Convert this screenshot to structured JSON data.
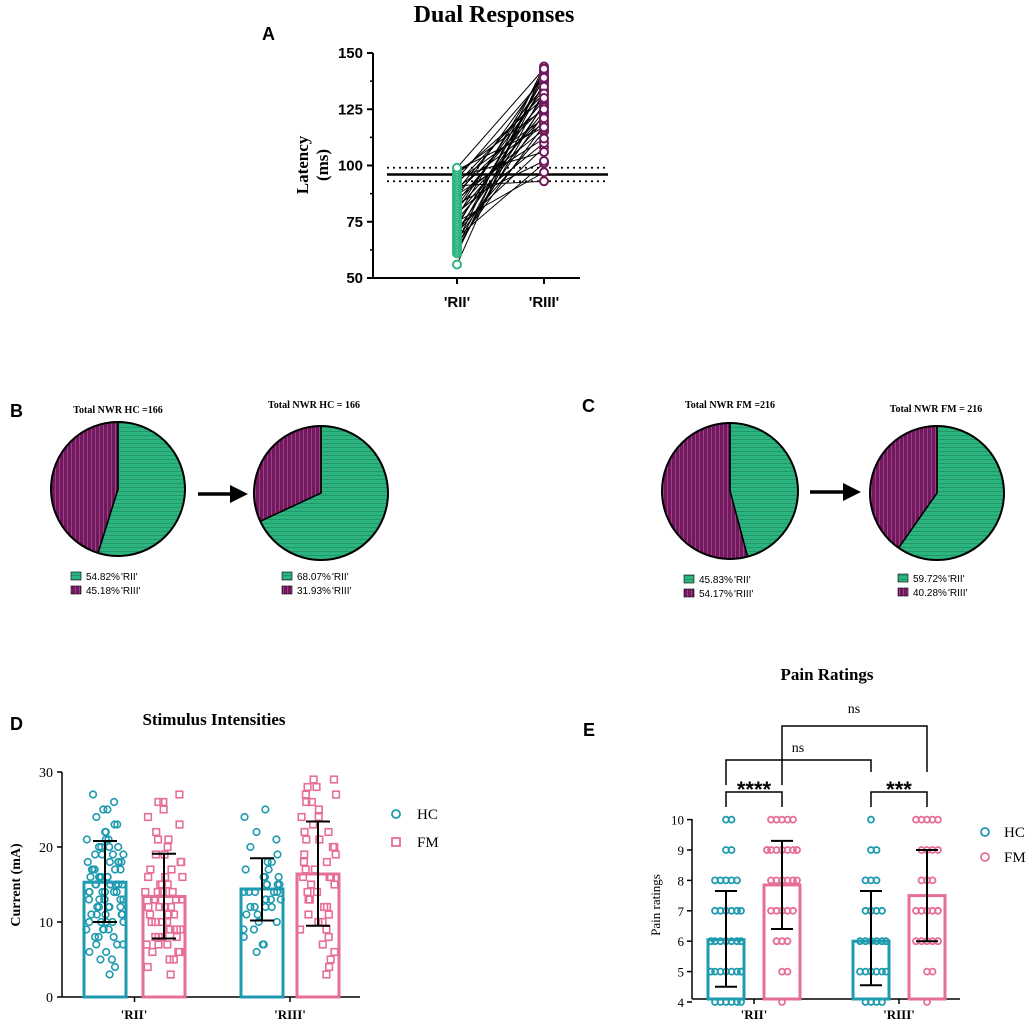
{
  "colors": {
    "rii": "#2bb47e",
    "riii": "#6e1a5b",
    "hc": "#1f9bb0",
    "fm": "#e86e9a",
    "ink": "#000000"
  },
  "chart_data": [
    {
      "id": "A",
      "type": "line",
      "panel_label": "A",
      "title": "Dual Responses",
      "ylabel": "Latency (ms)",
      "ylabel_lines": [
        "Latency",
        "(ms)"
      ],
      "categories": [
        "'RII'",
        "'RIII'"
      ],
      "ylim": [
        50,
        150
      ],
      "yticks": [
        "50",
        "75",
        "100",
        "125",
        "150"
      ],
      "reference_mean": 96,
      "reference_band": [
        93,
        99
      ],
      "pairs": [
        [
          56,
          143
        ],
        [
          61,
          141
        ],
        [
          62,
          133
        ],
        [
          63,
          128
        ],
        [
          64,
          137
        ],
        [
          65,
          118
        ],
        [
          66,
          144
        ],
        [
          67,
          123
        ],
        [
          68,
          101
        ],
        [
          69,
          139
        ],
        [
          70,
          115
        ],
        [
          71,
          127
        ],
        [
          72,
          108
        ],
        [
          73,
          136
        ],
        [
          74,
          131
        ],
        [
          75,
          97
        ],
        [
          76,
          120
        ],
        [
          77,
          142
        ],
        [
          78,
          124
        ],
        [
          79,
          110
        ],
        [
          80,
          138
        ],
        [
          81,
          122
        ],
        [
          82,
          134
        ],
        [
          83,
          102
        ],
        [
          84,
          129
        ],
        [
          85,
          116
        ],
        [
          86,
          140
        ],
        [
          87,
          112
        ],
        [
          88,
          126
        ],
        [
          89,
          135
        ],
        [
          90,
          119
        ],
        [
          91,
          93
        ],
        [
          92,
          132
        ],
        [
          93,
          121
        ],
        [
          94,
          139
        ],
        [
          95,
          106
        ],
        [
          96,
          130
        ],
        [
          97,
          125
        ],
        [
          98,
          117
        ],
        [
          99,
          143
        ]
      ]
    },
    {
      "id": "B1",
      "type": "pie",
      "panel_label": "B",
      "title": "Total NWR HC =166",
      "labels": [
        "'RII'",
        "'RIII'"
      ],
      "percent_labels": [
        "54.82%",
        "45.18%"
      ],
      "values": [
        54.82,
        45.18
      ]
    },
    {
      "id": "B2",
      "type": "pie",
      "title": "Total NWR HC = 166",
      "labels": [
        "'RII'",
        "'RIII'"
      ],
      "percent_labels": [
        "68.07%",
        "31.93%"
      ],
      "values": [
        68.07,
        31.93
      ]
    },
    {
      "id": "C1",
      "type": "pie",
      "panel_label": "C",
      "title": "Total NWR FM =216",
      "labels": [
        "'RII'",
        "'RIII'"
      ],
      "percent_labels": [
        "45.83%",
        "54.17%"
      ],
      "values": [
        45.83,
        54.17
      ]
    },
    {
      "id": "C2",
      "type": "pie",
      "title": "Total NWR FM = 216",
      "labels": [
        "'RII'",
        "'RIII'"
      ],
      "percent_labels": [
        "59.72%",
        "40.28%"
      ],
      "values": [
        59.72,
        40.28
      ]
    },
    {
      "id": "D",
      "type": "bar",
      "panel_label": "D",
      "title": "Stimulus Intensities",
      "ylabel": "Current (mA)",
      "categories": [
        "'RII'",
        "'RIII'"
      ],
      "ylim": [
        0,
        30
      ],
      "yticks": [
        "0",
        "10",
        "20",
        "30"
      ],
      "legend": [
        "HC",
        "FM"
      ],
      "series": [
        {
          "name": "HC",
          "means": [
            15.3,
            14.4
          ],
          "sd_low": [
            10.0,
            10.2
          ],
          "sd_high": [
            20.8,
            18.5
          ]
        },
        {
          "name": "FM",
          "means": [
            13.4,
            16.4
          ],
          "sd_low": [
            7.8,
            9.5
          ],
          "sd_high": [
            19.1,
            23.4
          ]
        }
      ],
      "points": {
        "HC_RII": [
          27,
          26,
          25,
          25,
          24,
          23,
          23,
          22,
          22,
          21,
          21,
          21,
          20,
          20,
          20,
          20,
          19,
          19,
          19,
          19,
          18,
          18,
          18,
          18,
          18,
          17,
          17,
          17,
          17,
          17,
          16,
          16,
          16,
          16,
          16,
          16,
          15,
          15,
          15,
          15,
          15,
          15,
          15,
          14,
          14,
          14,
          14,
          14,
          14,
          13,
          13,
          13,
          13,
          13,
          13,
          12,
          12,
          12,
          12,
          12,
          11,
          11,
          11,
          11,
          11,
          10,
          10,
          10,
          10,
          10,
          9,
          9,
          9,
          9,
          8,
          8,
          8,
          7,
          7,
          7,
          6,
          6,
          5,
          5,
          4,
          3
        ],
        "FM_RII": [
          27,
          26,
          26,
          25,
          24,
          23,
          22,
          21,
          21,
          20,
          19,
          19,
          18,
          18,
          17,
          17,
          16,
          16,
          16,
          15,
          15,
          15,
          14,
          14,
          14,
          14,
          13,
          13,
          13,
          13,
          12,
          12,
          12,
          12,
          11,
          11,
          11,
          11,
          10,
          10,
          10,
          10,
          9,
          9,
          9,
          9,
          8,
          8,
          8,
          8,
          7,
          7,
          7,
          6,
          6,
          6,
          5,
          5,
          4,
          3
        ],
        "HC_RIII": [
          25,
          24,
          22,
          21,
          20,
          19,
          18,
          18,
          17,
          17,
          16,
          16,
          16,
          15,
          15,
          15,
          15,
          14,
          14,
          14,
          14,
          14,
          13,
          13,
          13,
          13,
          12,
          12,
          12,
          12,
          11,
          11,
          10,
          10,
          9,
          9,
          8,
          7,
          7,
          6
        ],
        "FM_RIII": [
          29,
          29,
          28,
          28,
          27,
          27,
          26,
          26,
          25,
          24,
          24,
          23,
          22,
          22,
          21,
          21,
          20,
          20,
          19,
          19,
          18,
          18,
          17,
          17,
          16,
          16,
          16,
          15,
          15,
          14,
          14,
          13,
          13,
          12,
          12,
          11,
          11,
          10,
          10,
          9,
          9,
          8,
          7,
          6,
          5,
          4,
          3
        ]
      }
    },
    {
      "id": "E",
      "type": "bar",
      "panel_label": "E",
      "title": "Pain Ratings",
      "ylabel": "Pain ratings",
      "categories": [
        "'RII'",
        "'RIII'"
      ],
      "ylim": [
        3.5,
        10
      ],
      "yticks": [
        "4",
        "5",
        "6",
        "7",
        "8",
        "9",
        "10"
      ],
      "legend": [
        "HC",
        "FM"
      ],
      "series": [
        {
          "name": "HC",
          "means": [
            6.05,
            6.0
          ],
          "sd_low": [
            4.5,
            4.55
          ],
          "sd_high": [
            7.65,
            7.65
          ]
        },
        {
          "name": "FM",
          "means": [
            7.85,
            7.5
          ],
          "sd_low": [
            6.4,
            6.0
          ],
          "sd_high": [
            9.3,
            9.0
          ]
        }
      ],
      "points": {
        "HC_RII": [
          10,
          10,
          9,
          9,
          8,
          8,
          8,
          8,
          8,
          7,
          7,
          7,
          7,
          7,
          7,
          6,
          6,
          6,
          6,
          6,
          6,
          6,
          5,
          5,
          5,
          5,
          5,
          5,
          5,
          5,
          4,
          4,
          4,
          4,
          4,
          4
        ],
        "FM_RII": [
          10,
          10,
          10,
          10,
          10,
          9,
          9,
          9,
          9,
          9,
          9,
          9,
          9,
          9,
          8,
          8,
          8,
          8,
          8,
          8,
          7,
          7,
          7,
          7,
          7,
          6,
          6,
          6,
          5,
          5,
          4
        ],
        "HC_RIII": [
          10,
          9,
          9,
          8,
          8,
          8,
          7,
          7,
          7,
          7,
          6,
          6,
          6,
          6,
          6,
          6,
          5,
          5,
          5,
          5,
          5,
          5,
          4,
          4,
          4,
          4
        ],
        "FM_RIII": [
          10,
          10,
          10,
          10,
          10,
          9,
          9,
          9,
          9,
          8,
          8,
          8,
          7,
          7,
          7,
          7,
          7,
          6,
          6,
          6,
          6,
          6,
          5,
          5,
          4
        ]
      },
      "significance": [
        {
          "label": "****",
          "between": "HC_RII-FM_RII"
        },
        {
          "label": "***",
          "between": "HC_RIII-FM_RIII"
        },
        {
          "label": "ns",
          "between": "RII-HC_RIII"
        },
        {
          "label": "ns",
          "between": "FM_RII-FM_RIII"
        }
      ]
    }
  ]
}
